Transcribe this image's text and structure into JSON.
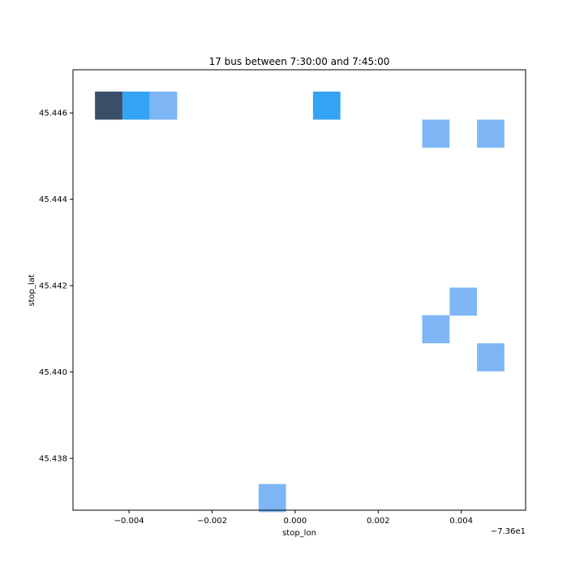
{
  "chart_data": {
    "type": "heatmap",
    "title": "17 bus between 7:30:00 and 7:45:00",
    "xlabel": "stop_lon",
    "ylabel": "stop_lat",
    "x_offset_label": "−7.36e1",
    "xlim": [
      -0.00535,
      0.00555
    ],
    "ylim": [
      45.4368,
      45.447
    ],
    "xticks": [
      {
        "value": -0.004,
        "label": "−0.004"
      },
      {
        "value": -0.002,
        "label": "−0.002"
      },
      {
        "value": 0.0,
        "label": "0.000"
      },
      {
        "value": 0.002,
        "label": "0.002"
      },
      {
        "value": 0.004,
        "label": "0.004"
      }
    ],
    "yticks": [
      {
        "value": 45.438,
        "label": "45.438"
      },
      {
        "value": 45.44,
        "label": "45.440"
      },
      {
        "value": 45.442,
        "label": "45.442"
      },
      {
        "value": 45.444,
        "label": "45.444"
      },
      {
        "value": 45.446,
        "label": "45.446"
      }
    ],
    "bin_width_lon": 0.00066,
    "bin_height_lat": 0.00065,
    "colors": [
      "#7eb6f5",
      "#34a2f5",
      "#3b4e68"
    ],
    "grid": false,
    "cells": [
      {
        "lon": -0.00449,
        "lat": 45.44617,
        "count": 3
      },
      {
        "lon": -0.00383,
        "lat": 45.44617,
        "count": 2
      },
      {
        "lon": -0.00317,
        "lat": 45.44617,
        "count": 1
      },
      {
        "lon": 0.00076,
        "lat": 45.44617,
        "count": 2
      },
      {
        "lon": 0.00339,
        "lat": 45.44552,
        "count": 1
      },
      {
        "lon": 0.00471,
        "lat": 45.44552,
        "count": 1
      },
      {
        "lon": 0.00405,
        "lat": 45.44163,
        "count": 1
      },
      {
        "lon": 0.00339,
        "lat": 45.44099,
        "count": 1
      },
      {
        "lon": 0.00471,
        "lat": 45.44034,
        "count": 1
      },
      {
        "lon": -0.00055,
        "lat": 45.43708,
        "count": 1
      }
    ]
  }
}
